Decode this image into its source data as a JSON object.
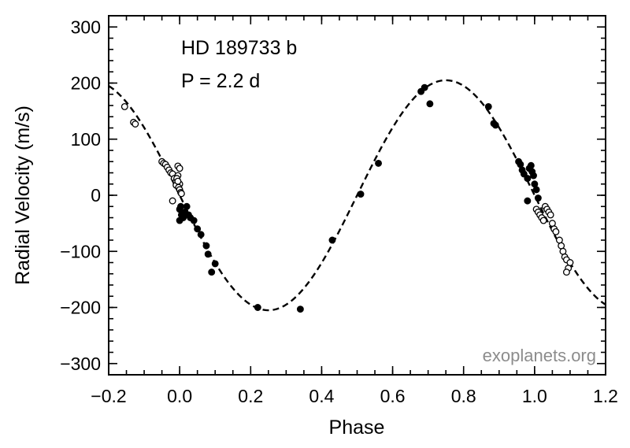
{
  "chart_data": {
    "type": "scatter",
    "title": "",
    "xlabel": "Phase",
    "ylabel": "Radial Velocity  (m/s)",
    "xlim": [
      -0.2,
      1.2
    ],
    "ylim": [
      -320,
      320
    ],
    "xticks": [
      -0.2,
      0.0,
      0.2,
      0.4,
      0.6,
      0.8,
      1.0,
      1.2
    ],
    "xtick_labels": [
      "−0.2",
      "0.0",
      "0.2",
      "0.4",
      "0.6",
      "0.8",
      "1.0",
      "1.2"
    ],
    "yticks": [
      300,
      200,
      100,
      0,
      -100,
      -200,
      -300
    ],
    "ytick_labels": [
      "300",
      "200",
      "100",
      "0",
      "−100",
      "−200",
      "−300"
    ],
    "grid": false,
    "annotations": [
      "HD 189733 b",
      "P = 2.2 d"
    ],
    "credit": "exoplanets.org",
    "model": {
      "style": "dashed",
      "amplitude": 205,
      "min_phase": 0.25
    },
    "series": [
      {
        "marker": "filled-circle",
        "x": [
          0.0,
          0.005,
          0.01,
          0.0,
          0.003,
          0.015,
          0.02,
          0.025,
          0.03,
          0.04,
          0.05,
          0.06,
          0.075,
          0.08,
          0.09,
          0.1,
          0.22,
          0.34,
          0.43,
          0.51,
          0.56,
          0.68,
          0.69,
          0.705,
          0.87,
          0.885,
          0.89,
          0.955,
          0.96,
          0.965,
          0.97,
          0.98,
          0.985,
          0.99,
          0.993,
          0.997,
          1.0,
          1.005,
          1.01,
          0.98
        ],
        "y": [
          -25,
          -35,
          -40,
          -45,
          -20,
          -30,
          -20,
          -35,
          -40,
          -45,
          -60,
          -70,
          -90,
          -105,
          -137,
          -122,
          -200,
          -203,
          -80,
          2,
          57,
          185,
          192,
          163,
          158,
          128,
          125,
          60,
          55,
          45,
          38,
          30,
          48,
          53,
          42,
          35,
          20,
          10,
          -5,
          -10
        ]
      },
      {
        "marker": "open-circle",
        "x": [
          -0.155,
          -0.13,
          -0.125,
          -0.05,
          -0.045,
          -0.04,
          -0.035,
          -0.03,
          -0.025,
          -0.02,
          -0.015,
          -0.01,
          -0.005,
          0.0,
          -0.005,
          0.0,
          -0.01,
          -0.008,
          -0.005,
          -0.003,
          0.0,
          0.003,
          0.005,
          -0.02,
          1.005,
          1.01,
          1.015,
          1.02,
          1.025,
          1.03,
          1.035,
          1.04,
          1.045,
          1.05,
          1.055,
          1.06,
          1.07,
          1.075,
          1.08,
          1.085,
          1.09,
          1.095,
          1.1,
          1.09
        ],
        "y": [
          158,
          130,
          127,
          60,
          57,
          55,
          50,
          45,
          40,
          38,
          30,
          25,
          52,
          48,
          35,
          20,
          18,
          30,
          25,
          14,
          10,
          5,
          3,
          -10,
          -25,
          -30,
          -35,
          -40,
          -45,
          -20,
          -25,
          -30,
          -35,
          -50,
          -60,
          -65,
          -80,
          -90,
          -100,
          -110,
          -115,
          -130,
          -120,
          -137
        ]
      }
    ]
  }
}
